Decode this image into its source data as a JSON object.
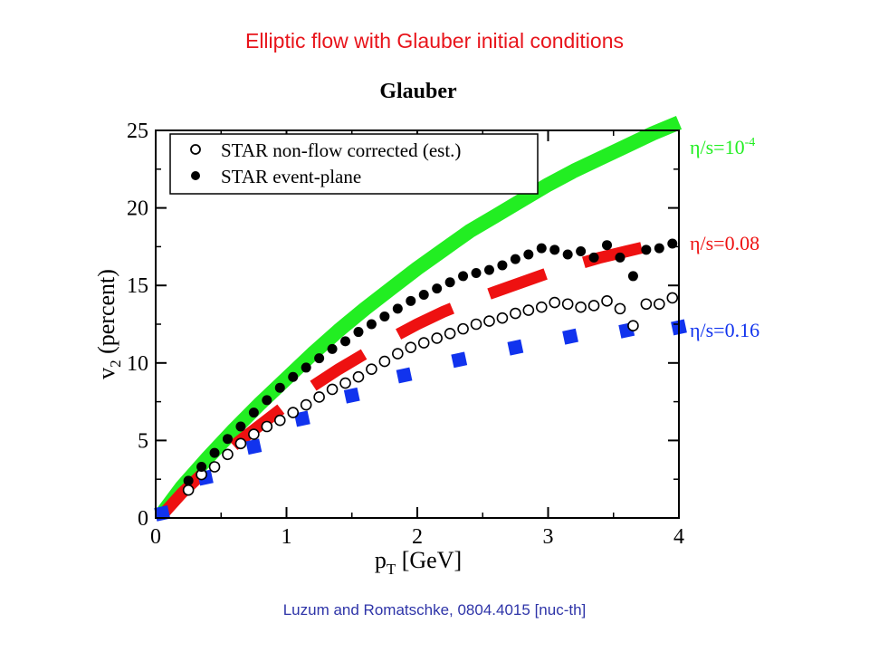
{
  "slide": {
    "title": "Elliptic flow with Glauber initial conditions",
    "credit": "Luzum and Romatschke, 0804.4015 [nuc-th]"
  },
  "colors": {
    "title_red": "#e8141b",
    "credit_blue": "#2e34a8",
    "ideal_green": "#22ee22",
    "visc008_red": "#ee1111",
    "visc016_blue": "#1133ee",
    "data_black": "#000000"
  },
  "chart_data": {
    "type": "scatter",
    "title": "Glauber",
    "xlabel": {
      "main": "p",
      "sub": "T",
      "rest": " [GeV]"
    },
    "ylabel": {
      "main": "v",
      "sub": "2",
      "rest": " (percent)"
    },
    "xlim": [
      0,
      4
    ],
    "ylim": [
      0,
      25
    ],
    "xticks": [
      0,
      1,
      2,
      3,
      4
    ],
    "yticks": [
      0,
      5,
      10,
      15,
      20,
      25
    ],
    "grid": false,
    "legend": {
      "position": "top-left",
      "entries": [
        "STAR non-flow corrected (est.)",
        "STAR event-plane"
      ]
    },
    "series": [
      {
        "name": "STAR non-flow corrected (est.)",
        "marker": "open-circle",
        "color": "#000000",
        "x": [
          0.25,
          0.35,
          0.45,
          0.55,
          0.65,
          0.75,
          0.85,
          0.95,
          1.05,
          1.15,
          1.25,
          1.35,
          1.45,
          1.55,
          1.65,
          1.75,
          1.85,
          1.95,
          2.05,
          2.15,
          2.25,
          2.35,
          2.45,
          2.55,
          2.65,
          2.75,
          2.85,
          2.95,
          3.05,
          3.15,
          3.25,
          3.35,
          3.45,
          3.55,
          3.65,
          3.75,
          3.85,
          3.95
        ],
        "y": [
          1.8,
          2.8,
          3.3,
          4.1,
          4.8,
          5.4,
          5.9,
          6.3,
          6.8,
          7.3,
          7.8,
          8.3,
          8.7,
          9.1,
          9.6,
          10.1,
          10.6,
          11.0,
          11.3,
          11.6,
          11.9,
          12.2,
          12.5,
          12.7,
          12.9,
          13.2,
          13.4,
          13.6,
          13.9,
          13.8,
          13.6,
          13.7,
          14.0,
          13.5,
          12.4,
          13.8,
          13.8,
          14.2
        ]
      },
      {
        "name": "STAR event-plane",
        "marker": "filled-circle",
        "color": "#000000",
        "x": [
          0.25,
          0.35,
          0.45,
          0.55,
          0.65,
          0.75,
          0.85,
          0.95,
          1.05,
          1.15,
          1.25,
          1.35,
          1.45,
          1.55,
          1.65,
          1.75,
          1.85,
          1.95,
          2.05,
          2.15,
          2.25,
          2.35,
          2.45,
          2.55,
          2.65,
          2.75,
          2.85,
          2.95,
          3.05,
          3.15,
          3.25,
          3.35,
          3.45,
          3.55,
          3.65,
          3.75,
          3.85,
          3.95
        ],
        "y": [
          2.4,
          3.3,
          4.2,
          5.1,
          5.9,
          6.8,
          7.6,
          8.4,
          9.1,
          9.7,
          10.3,
          10.9,
          11.4,
          12.0,
          12.5,
          13.0,
          13.5,
          14.0,
          14.4,
          14.8,
          15.2,
          15.6,
          15.8,
          16.0,
          16.3,
          16.7,
          17.0,
          17.4,
          17.3,
          17.0,
          17.2,
          16.8,
          17.6,
          16.8,
          15.6,
          17.3,
          17.4,
          17.7
        ]
      },
      {
        "name": "η/s=10^-4",
        "label": {
          "text": "η/s=10",
          "sup": "-4"
        },
        "style": "solid-band",
        "color": "#22ee22",
        "x": [
          0.05,
          0.2,
          0.4,
          0.6,
          0.8,
          1.0,
          1.2,
          1.4,
          1.6,
          1.8,
          2.0,
          2.2,
          2.4,
          2.6,
          2.8,
          3.0,
          3.2,
          3.4,
          3.6,
          3.8,
          4.0
        ],
        "y": [
          0.3,
          2.0,
          3.9,
          5.7,
          7.4,
          9.0,
          10.6,
          12.1,
          13.5,
          14.8,
          16.1,
          17.3,
          18.5,
          19.5,
          20.5,
          21.5,
          22.4,
          23.2,
          24.0,
          24.8,
          25.5
        ]
      },
      {
        "name": "η/s=0.08",
        "label": {
          "text": "η/s=0.08"
        },
        "style": "dashed-band",
        "color": "#ee1111",
        "x": [
          0.05,
          0.2,
          0.4,
          0.6,
          0.8,
          1.0,
          1.2,
          1.4,
          1.6,
          1.8,
          2.0,
          2.2,
          2.4,
          2.6,
          2.8,
          3.0,
          3.2,
          3.4,
          3.6,
          3.8,
          4.0
        ],
        "y": [
          0.2,
          1.6,
          3.2,
          4.7,
          6.0,
          7.3,
          8.5,
          9.6,
          10.6,
          11.6,
          12.5,
          13.3,
          14.0,
          14.6,
          15.2,
          15.8,
          16.3,
          16.8,
          17.2,
          17.6,
          18.0
        ]
      },
      {
        "name": "η/s=0.16",
        "label": {
          "text": "η/s=0.16"
        },
        "style": "square-dots",
        "color": "#1133ee",
        "x": [
          0.05,
          0.38,
          0.75,
          1.12,
          1.5,
          1.9,
          2.32,
          2.75,
          3.17,
          3.6,
          4.0
        ],
        "y": [
          0.3,
          2.6,
          4.6,
          6.4,
          7.9,
          9.2,
          10.2,
          11.0,
          11.7,
          12.1,
          12.3
        ]
      }
    ]
  }
}
